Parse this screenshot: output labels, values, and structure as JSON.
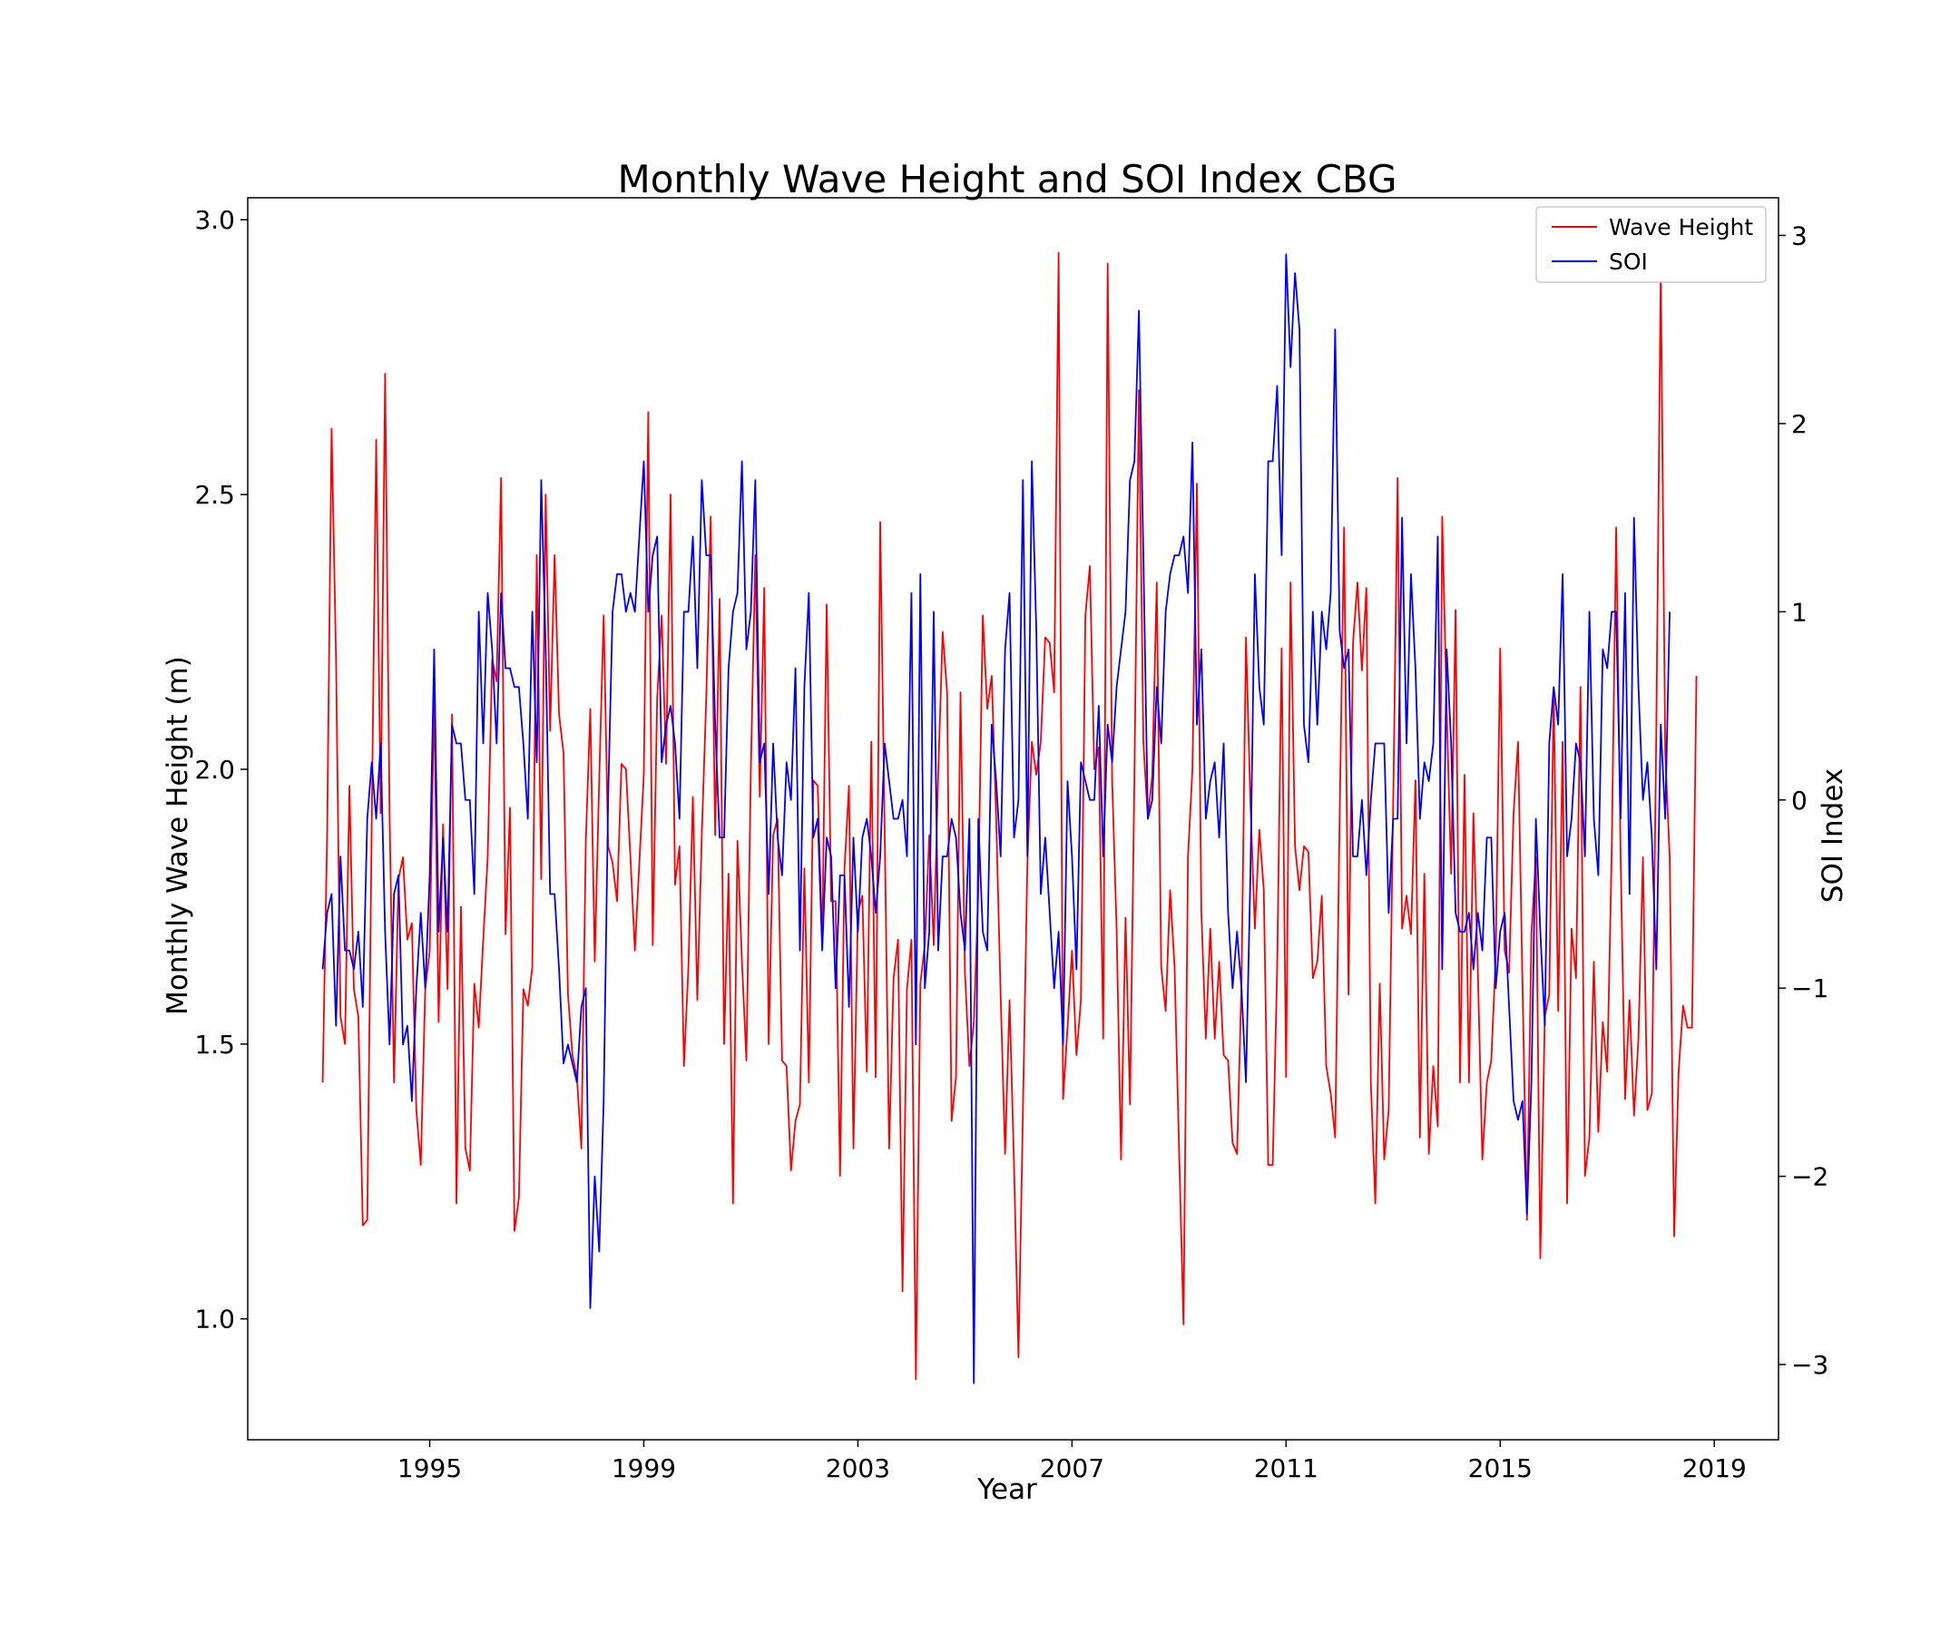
{
  "chart_data": {
    "type": "line",
    "title": "Monthly Wave Height and SOI Index CBG",
    "xlabel": "Year",
    "ylabel": "Monthly Wave Height (m)",
    "y2label": "SOI Index",
    "xlim": [
      1991.6,
      2020.2
    ],
    "ylim": [
      0.78,
      3.04
    ],
    "y2lim": [
      -3.4,
      3.2
    ],
    "xticks": [
      1995,
      1999,
      2003,
      2007,
      2011,
      2015,
      2019
    ],
    "yticks": [
      1.0,
      1.5,
      2.0,
      2.5,
      3.0
    ],
    "y2ticks": [
      -3,
      -2,
      -1,
      0,
      1,
      2,
      3
    ],
    "grid": false,
    "legend_position": "top-right",
    "x_start": 1993.0,
    "x_step": 0.0833333,
    "series": [
      {
        "name": "Wave Height",
        "axis": "left",
        "color": "#ff0000",
        "values": [
          1.43,
          1.88,
          2.62,
          2.2,
          1.55,
          1.5,
          1.97,
          1.6,
          1.55,
          1.17,
          1.18,
          1.9,
          2.6,
          1.92,
          2.72,
          1.92,
          1.43,
          1.8,
          1.84,
          1.69,
          1.72,
          1.38,
          1.28,
          1.6,
          1.67,
          2.14,
          1.54,
          1.9,
          1.6,
          2.1,
          1.21,
          1.75,
          1.31,
          1.27,
          1.61,
          1.53,
          1.69,
          1.84,
          2.2,
          2.16,
          2.53,
          1.7,
          1.93,
          1.16,
          1.22,
          1.6,
          1.57,
          1.64,
          2.39,
          1.8,
          2.5,
          2.07,
          2.39,
          2.1,
          2.03,
          1.59,
          1.48,
          1.44,
          1.31,
          1.87,
          2.11,
          1.65,
          1.98,
          2.28,
          1.86,
          1.83,
          1.76,
          2.01,
          2.0,
          1.84,
          1.67,
          1.83,
          1.99,
          2.65,
          1.68,
          2.13,
          2.28,
          2.01,
          2.5,
          1.79,
          1.86,
          1.46,
          1.64,
          1.95,
          1.58,
          1.88,
          2.13,
          2.46,
          1.88,
          2.31,
          1.5,
          1.81,
          1.21,
          1.87,
          1.65,
          1.47,
          2.0,
          2.39,
          1.95,
          2.33,
          1.5,
          1.88,
          1.91,
          1.47,
          1.46,
          1.27,
          1.36,
          1.39,
          1.82,
          1.43,
          1.98,
          1.97,
          1.68,
          2.3,
          1.76,
          1.76,
          1.26,
          1.82,
          1.97,
          1.31,
          1.74,
          1.77,
          1.45,
          2.05,
          1.44,
          2.45,
          1.89,
          1.31,
          1.62,
          1.69,
          1.05,
          1.6,
          1.69,
          0.89,
          1.61,
          1.68,
          1.88,
          1.68,
          1.99,
          2.25,
          2.14,
          1.36,
          1.44,
          2.14,
          1.63,
          1.46,
          1.54,
          1.78,
          2.28,
          2.11,
          2.17,
          1.91,
          1.59,
          1.3,
          1.58,
          1.28,
          0.93,
          1.38,
          1.83,
          2.05,
          1.99,
          2.05,
          2.24,
          2.23,
          2.14,
          2.94,
          1.4,
          1.53,
          1.67,
          1.48,
          1.58,
          2.28,
          2.37,
          2.0,
          2.04,
          1.51,
          2.92,
          1.98,
          1.71,
          1.29,
          1.73,
          1.39,
          1.99,
          2.69,
          2.05,
          1.91,
          1.99,
          2.34,
          1.64,
          1.56,
          1.78,
          1.64,
          1.31,
          0.99,
          1.84,
          2.0,
          2.52,
          1.74,
          1.51,
          1.71,
          1.51,
          1.65,
          1.48,
          1.47,
          1.32,
          1.3,
          1.61,
          2.24,
          1.94,
          1.71,
          1.89,
          1.78,
          1.28,
          1.28,
          1.64,
          2.22,
          1.44,
          2.34,
          1.86,
          1.78,
          1.86,
          1.85,
          1.62,
          1.65,
          1.77,
          1.46,
          1.41,
          1.33,
          1.91,
          2.44,
          1.59,
          2.23,
          2.34,
          2.18,
          2.33,
          1.43,
          1.21,
          1.61,
          1.29,
          1.38,
          1.93,
          2.53,
          1.71,
          1.77,
          1.7,
          1.98,
          1.33,
          1.81,
          1.3,
          1.46,
          1.35,
          2.46,
          2.11,
          1.81,
          2.29,
          1.43,
          1.99,
          1.43,
          1.92,
          1.63,
          1.29,
          1.43,
          1.47,
          1.66,
          2.22,
          1.67,
          1.63,
          1.92,
          2.05,
          1.61,
          1.18,
          1.7,
          1.84,
          1.11,
          1.55,
          1.59,
          2.14,
          1.56,
          2.05,
          1.21,
          1.71,
          1.62,
          2.15,
          1.26,
          1.33,
          1.65,
          1.34,
          1.54,
          1.45,
          1.85,
          2.44,
          1.84,
          1.4,
          1.58,
          1.37,
          1.51,
          1.84,
          1.38,
          1.41,
          2.07,
          2.91,
          2.03,
          1.84,
          1.15,
          1.45,
          1.57,
          1.53,
          1.53,
          2.17
        ]
      },
      {
        "name": "SOI",
        "axis": "right",
        "color": "#0000ff",
        "values": [
          -0.9,
          -0.6,
          -0.5,
          -1.2,
          -0.3,
          -0.8,
          -0.8,
          -0.9,
          -0.7,
          -1.1,
          -0.1,
          0.2,
          -0.1,
          0.3,
          -0.7,
          -1.3,
          -0.5,
          -0.4,
          -1.3,
          -1.2,
          -1.6,
          -1.0,
          -0.6,
          -1.0,
          -0.4,
          0.8,
          -0.7,
          -0.2,
          -0.7,
          0.4,
          0.3,
          0.3,
          0.0,
          0.0,
          -0.5,
          1.0,
          0.3,
          1.1,
          0.8,
          0.3,
          1.1,
          0.7,
          0.7,
          0.6,
          0.6,
          0.3,
          -0.1,
          1.0,
          0.2,
          1.7,
          0.8,
          -0.5,
          -0.5,
          -0.9,
          -1.4,
          -1.3,
          -1.4,
          -1.5,
          -1.1,
          -1.0,
          -2.7,
          -2.0,
          -2.4,
          -1.6,
          0.0,
          1.0,
          1.2,
          1.2,
          1.0,
          1.1,
          1.0,
          1.4,
          1.8,
          1.0,
          1.3,
          1.4,
          0.2,
          0.4,
          0.5,
          0.3,
          -0.1,
          1.0,
          1.0,
          1.4,
          0.7,
          1.7,
          1.3,
          1.3,
          0.4,
          -0.2,
          -0.2,
          0.7,
          1.0,
          1.1,
          1.8,
          0.8,
          1.0,
          1.7,
          0.2,
          0.3,
          -0.5,
          0.3,
          -0.2,
          -0.4,
          0.2,
          0.0,
          0.7,
          -0.8,
          0.6,
          1.1,
          -0.2,
          -0.1,
          -0.8,
          -0.2,
          -0.3,
          -1.0,
          -0.4,
          -0.4,
          -1.1,
          -0.2,
          -0.7,
          -0.2,
          -0.1,
          -0.3,
          -0.6,
          -0.3,
          0.3,
          0.1,
          -0.1,
          -0.1,
          0.0,
          -0.3,
          1.1,
          -1.3,
          1.2,
          -1.0,
          -0.7,
          1.0,
          -0.8,
          -0.3,
          -0.3,
          -0.1,
          -0.2,
          -0.6,
          -0.8,
          -0.1,
          -3.1,
          -0.1,
          -0.7,
          -0.8,
          0.4,
          0.1,
          -0.3,
          0.8,
          1.1,
          -0.2,
          0.0,
          1.7,
          -0.3,
          1.8,
          0.9,
          -0.5,
          -0.2,
          -0.6,
          -1.0,
          -0.7,
          -1.3,
          0.1,
          -0.3,
          -0.9,
          0.2,
          0.1,
          0.0,
          0.0,
          0.5,
          -0.3,
          0.4,
          0.2,
          0.6,
          0.8,
          1.0,
          1.7,
          1.8,
          2.6,
          1.3,
          -0.1,
          0.0,
          0.6,
          0.3,
          1.0,
          1.2,
          1.3,
          1.3,
          1.4,
          1.1,
          1.9,
          0.4,
          0.8,
          -0.1,
          0.1,
          0.2,
          -0.2,
          0.3,
          -0.6,
          -1.0,
          -0.7,
          -1.0,
          -1.5,
          -0.4,
          1.2,
          0.6,
          0.4,
          1.8,
          1.8,
          2.2,
          1.3,
          2.9,
          2.3,
          2.8,
          2.5,
          0.4,
          0.2,
          1.0,
          0.4,
          1.0,
          0.8,
          1.1,
          2.5,
          0.9,
          0.7,
          0.8,
          -0.3,
          -0.3,
          0.0,
          -0.4,
          0.0,
          0.3,
          0.3,
          0.3,
          -0.6,
          -0.1,
          -0.1,
          1.5,
          0.3,
          1.2,
          0.7,
          -0.1,
          0.2,
          0.1,
          0.3,
          1.4,
          -0.9,
          0.8,
          0.3,
          -0.6,
          -0.7,
          -0.7,
          -0.6,
          -0.9,
          -0.6,
          -0.8,
          -0.2,
          -0.2,
          -1.0,
          -0.7,
          -0.6,
          -1.1,
          -1.6,
          -1.7,
          -1.6,
          -2.2,
          -1.5,
          -0.1,
          -0.7,
          -1.2,
          0.3,
          0.6,
          0.4,
          1.2,
          -0.3,
          -0.1,
          0.3,
          0.2,
          -0.3,
          1.0,
          -0.1,
          -0.4,
          0.8,
          0.7,
          1.0,
          1.0,
          -0.1,
          1.1,
          -0.5,
          1.5,
          0.6,
          0.0,
          0.2,
          -0.2,
          -0.9,
          0.4,
          -0.1,
          1.0
        ]
      }
    ]
  }
}
